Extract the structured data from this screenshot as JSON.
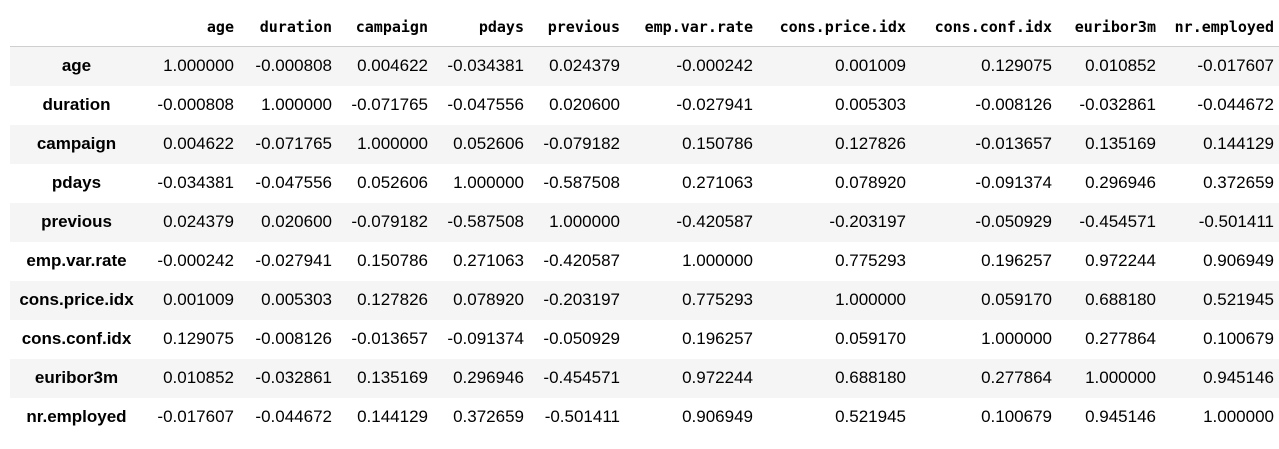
{
  "table": {
    "columns": [
      "age",
      "duration",
      "campaign",
      "pdays",
      "previous",
      "emp.var.rate",
      "cons.price.idx",
      "cons.conf.idx",
      "euribor3m",
      "nr.employed"
    ],
    "rows": [
      {
        "label": "age",
        "values": [
          "1.000000",
          "-0.000808",
          "0.004622",
          "-0.034381",
          "0.024379",
          "-0.000242",
          "0.001009",
          "0.129075",
          "0.010852",
          "-0.017607"
        ]
      },
      {
        "label": "duration",
        "values": [
          "-0.000808",
          "1.000000",
          "-0.071765",
          "-0.047556",
          "0.020600",
          "-0.027941",
          "0.005303",
          "-0.008126",
          "-0.032861",
          "-0.044672"
        ]
      },
      {
        "label": "campaign",
        "values": [
          "0.004622",
          "-0.071765",
          "1.000000",
          "0.052606",
          "-0.079182",
          "0.150786",
          "0.127826",
          "-0.013657",
          "0.135169",
          "0.144129"
        ]
      },
      {
        "label": "pdays",
        "values": [
          "-0.034381",
          "-0.047556",
          "0.052606",
          "1.000000",
          "-0.587508",
          "0.271063",
          "0.078920",
          "-0.091374",
          "0.296946",
          "0.372659"
        ]
      },
      {
        "label": "previous",
        "values": [
          "0.024379",
          "0.020600",
          "-0.079182",
          "-0.587508",
          "1.000000",
          "-0.420587",
          "-0.203197",
          "-0.050929",
          "-0.454571",
          "-0.501411"
        ]
      },
      {
        "label": "emp.var.rate",
        "values": [
          "-0.000242",
          "-0.027941",
          "0.150786",
          "0.271063",
          "-0.420587",
          "1.000000",
          "0.775293",
          "0.196257",
          "0.972244",
          "0.906949"
        ]
      },
      {
        "label": "cons.price.idx",
        "values": [
          "0.001009",
          "0.005303",
          "0.127826",
          "0.078920",
          "-0.203197",
          "0.775293",
          "1.000000",
          "0.059170",
          "0.688180",
          "0.521945"
        ]
      },
      {
        "label": "cons.conf.idx",
        "values": [
          "0.129075",
          "-0.008126",
          "-0.013657",
          "-0.091374",
          "-0.050929",
          "0.196257",
          "0.059170",
          "1.000000",
          "0.277864",
          "0.100679"
        ]
      },
      {
        "label": "euribor3m",
        "values": [
          "0.010852",
          "-0.032861",
          "0.135169",
          "0.296946",
          "-0.454571",
          "0.972244",
          "0.688180",
          "0.277864",
          "1.000000",
          "0.945146"
        ]
      },
      {
        "label": "nr.employed",
        "values": [
          "-0.017607",
          "-0.044672",
          "0.144129",
          "0.372659",
          "-0.501411",
          "0.906949",
          "0.521945",
          "0.100679",
          "0.945146",
          "1.000000"
        ]
      }
    ]
  }
}
